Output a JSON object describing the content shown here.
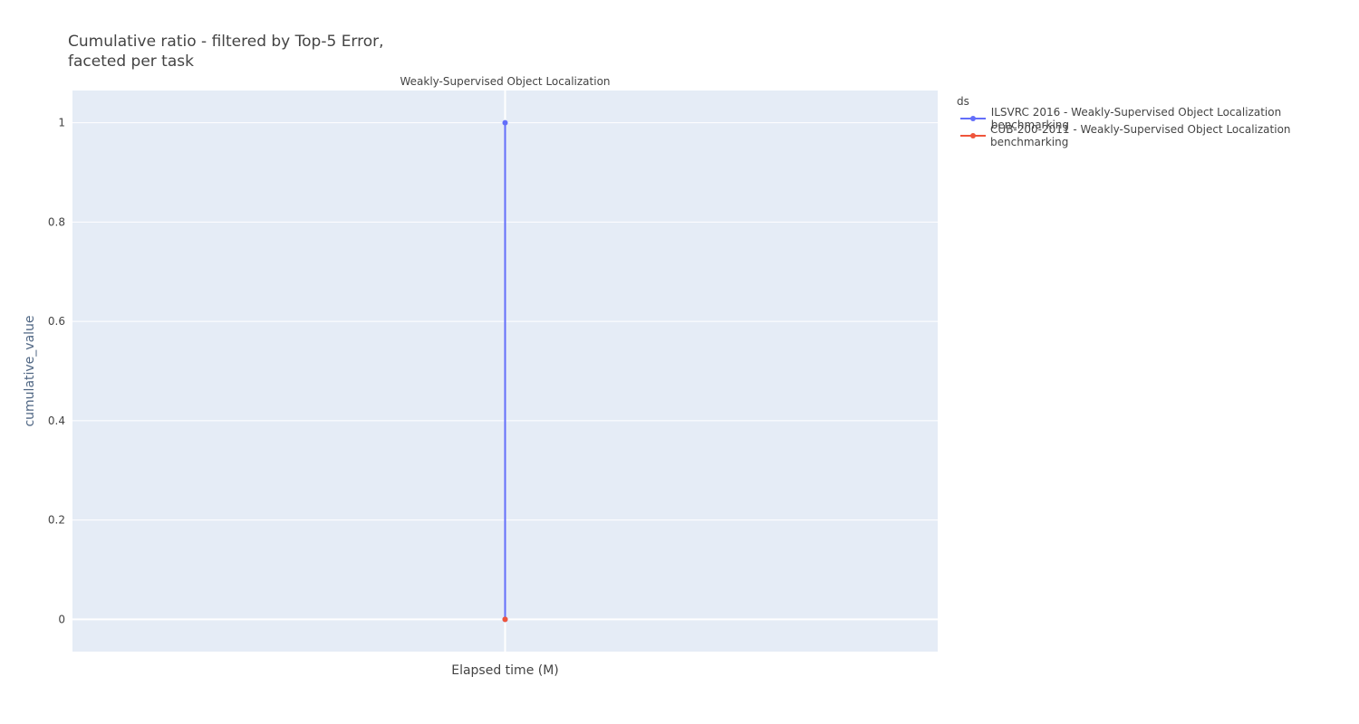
{
  "chart_data": {
    "type": "line",
    "title": "Cumulative ratio - filtered by Top-5 Error,\nfaceted per task",
    "facet_title": "Weakly-Supervised Object Localization",
    "xlabel": "Elapsed time (M)",
    "ylabel": "cumulative_value",
    "ylim": [
      -0.065,
      1.065
    ],
    "yticks": [
      0,
      0.2,
      0.4,
      0.6,
      0.8,
      1
    ],
    "ytick_labels": [
      "0",
      "0.2",
      "0.4",
      "0.6",
      "0.8",
      "1"
    ],
    "legend_title": "ds",
    "legend_placement": "top-right outside",
    "grid": true,
    "series": [
      {
        "name": "ILSVRC 2016 - Weakly-Supervised Object Localization benchmarking",
        "color": "#636efa",
        "x": [
          0,
          0
        ],
        "y": [
          0,
          1
        ]
      },
      {
        "name": "CUB-200-2011 - Weakly-Supervised Object Localization benchmarking",
        "color": "#ef553b",
        "x": [
          0
        ],
        "y": [
          0
        ]
      }
    ]
  }
}
